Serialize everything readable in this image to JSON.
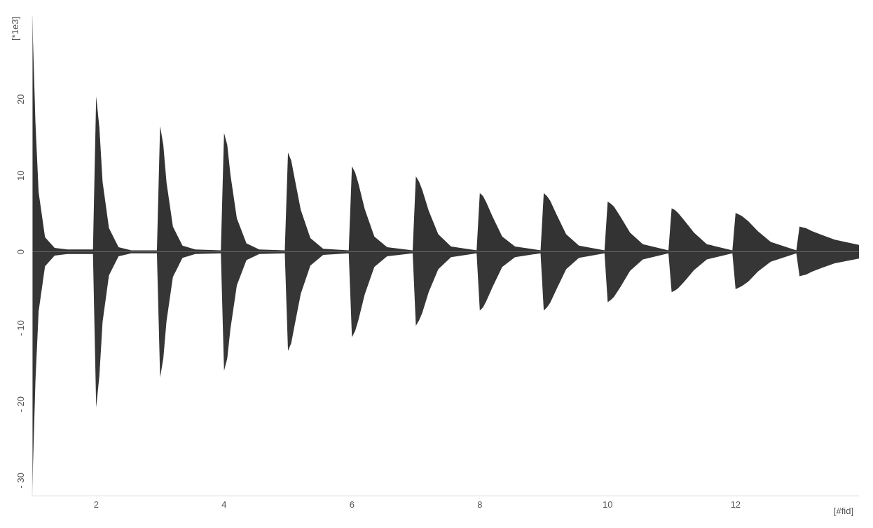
{
  "chart_data": {
    "type": "area",
    "xlabel": "[#fid]",
    "ylabel": "[*1e3]",
    "x": [
      1,
      1.05,
      1.1,
      1.2,
      1.35,
      1.55,
      1.95,
      2,
      2.05,
      2.1,
      2.2,
      2.35,
      2.55,
      2.95,
      3,
      3.05,
      3.1,
      3.2,
      3.35,
      3.55,
      3.95,
      4,
      4.05,
      4.1,
      4.2,
      4.35,
      4.55,
      4.95,
      5,
      5.05,
      5.1,
      5.2,
      5.35,
      5.55,
      5.95,
      6,
      6.05,
      6.1,
      6.2,
      6.35,
      6.55,
      6.95,
      7,
      7.05,
      7.1,
      7.2,
      7.35,
      7.55,
      7.95,
      8,
      8.05,
      8.1,
      8.2,
      8.35,
      8.55,
      8.95,
      9,
      9.05,
      9.1,
      9.2,
      9.35,
      9.55,
      9.95,
      10,
      10.05,
      10.1,
      10.2,
      10.35,
      10.55,
      10.95,
      11,
      11.05,
      11.1,
      11.2,
      11.35,
      11.55,
      11.95,
      12,
      12.05,
      12.1,
      12.2,
      12.35,
      12.55,
      12.95,
      13,
      13.05,
      13.1,
      13.2,
      13.35,
      13.55,
      13.93
    ],
    "series": [
      {
        "color": "#333333",
        "values": [
          31,
          17,
          7.8,
          1.9,
          0.5,
          0.3,
          0.3,
          20.4,
          16.3,
          9.2,
          3.1,
          0.6,
          0.2,
          0.2,
          16.5,
          14,
          9.1,
          3.3,
          0.8,
          0.3,
          0.2,
          15.6,
          14,
          10.1,
          4.4,
          1.1,
          0.3,
          0.2,
          13,
          12,
          9.8,
          5.5,
          1.8,
          0.4,
          0.2,
          11.2,
          10.4,
          9,
          5.6,
          2,
          0.6,
          0.2,
          9.9,
          9.2,
          8.1,
          5.4,
          2.3,
          0.7,
          0.2,
          7.7,
          7.3,
          6.5,
          4.6,
          2,
          0.7,
          0.2,
          7.7,
          7.3,
          6.7,
          4.9,
          2.3,
          0.8,
          0.2,
          6.6,
          6.3,
          5.9,
          4.6,
          2.5,
          1,
          0.2,
          5.7,
          5.5,
          5.1,
          4.1,
          2.5,
          1,
          0.2,
          5.1,
          4.9,
          4.7,
          4,
          2.7,
          1.3,
          0.2,
          3.3,
          3.2,
          3.1,
          2.7,
          2.2,
          1.6,
          0.9
        ]
      },
      {
        "color": "#363636",
        "values": [
          -31.4,
          -17,
          -7.8,
          -1.9,
          -0.5,
          -0.3,
          -0.3,
          -20.4,
          -16.3,
          -9.2,
          -3.1,
          -0.6,
          -0.2,
          -0.2,
          -16.5,
          -14,
          -9.1,
          -3.3,
          -0.8,
          -0.3,
          -0.2,
          -15.6,
          -14,
          -10.1,
          -4.4,
          -1.1,
          -0.3,
          -0.2,
          -13,
          -12,
          -9.8,
          -5.5,
          -1.8,
          -0.4,
          -0.2,
          -11.2,
          -10.4,
          -9,
          -5.6,
          -2,
          -0.6,
          -0.2,
          -9.7,
          -9,
          -8,
          -5.3,
          -2.3,
          -0.7,
          -0.2,
          -7.7,
          -7.3,
          -6.5,
          -4.6,
          -2,
          -0.7,
          -0.2,
          -7.7,
          -7.3,
          -6.7,
          -4.9,
          -2.3,
          -0.8,
          -0.2,
          -6.6,
          -6.3,
          -5.9,
          -4.6,
          -2.5,
          -1,
          -0.2,
          -5.3,
          -5.1,
          -4.8,
          -3.9,
          -2.4,
          -1,
          -0.2,
          -4.9,
          -4.7,
          -4.5,
          -3.9,
          -2.6,
          -1.3,
          -0.2,
          -3.2,
          -3.1,
          -3,
          -2.6,
          -2.1,
          -1.5,
          -0.9
        ]
      }
    ],
    "xlim": [
      1,
      13.93
    ],
    "xticks": [
      2,
      4,
      6,
      8,
      10,
      12
    ],
    "ylim": [
      -32,
      31
    ],
    "yticks": [
      {
        "value": -30,
        "label": "- 30"
      },
      {
        "value": -20,
        "label": "- 20"
      },
      {
        "value": -10,
        "label": "- 10"
      },
      0,
      10,
      20
    ],
    "grid": false,
    "legend": false
  }
}
